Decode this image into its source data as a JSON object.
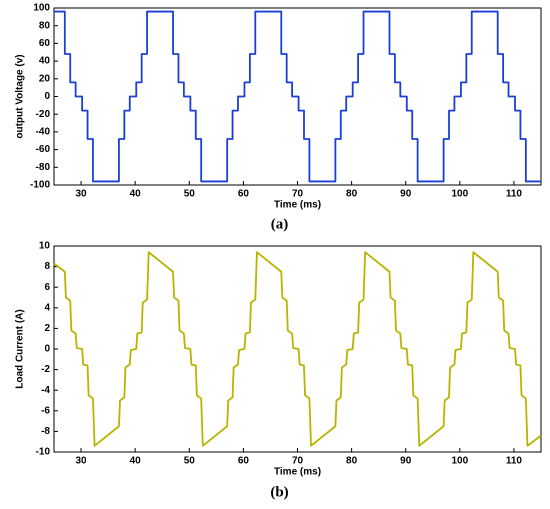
{
  "chart_data": [
    {
      "type": "line",
      "caption": "(a)",
      "xlabel": "Time (ms)",
      "ylabel": "output Voltage (v)",
      "xlim": [
        25,
        115
      ],
      "xticks": [
        30,
        40,
        50,
        60,
        70,
        80,
        90,
        100,
        110
      ],
      "ylim": [
        -100,
        100
      ],
      "yticks": [
        -100,
        -80,
        -60,
        -40,
        -20,
        0,
        20,
        40,
        60,
        80,
        100
      ],
      "series": [
        {
          "color": "#1a3fd8",
          "x": [
            25,
            27,
            27,
            28,
            28,
            29,
            29,
            30.2,
            30.2,
            31.2,
            31.2,
            32.2,
            32.2,
            37,
            37,
            38,
            38,
            39,
            39,
            40.2,
            40.2,
            41.2,
            41.2,
            42.2,
            42.2,
            47,
            47,
            48,
            48,
            49,
            49,
            50.2,
            50.2,
            51.2,
            51.2,
            52.2,
            52.2,
            57,
            57,
            58,
            58,
            59,
            59,
            60.2,
            60.2,
            61.2,
            61.2,
            62.2,
            62.2,
            67,
            67,
            68,
            68,
            69,
            69,
            70.2,
            70.2,
            71.2,
            71.2,
            72.2,
            72.2,
            77,
            77,
            78,
            78,
            79,
            79,
            80.2,
            80.2,
            81.2,
            81.2,
            82.2,
            82.2,
            87,
            87,
            88,
            88,
            89,
            89,
            90.2,
            90.2,
            91.2,
            91.2,
            92.2,
            92.2,
            97,
            97,
            98,
            98,
            99,
            99,
            100.2,
            100.2,
            101.2,
            101.2,
            102.2,
            102.2,
            107,
            107,
            108,
            108,
            109,
            109,
            110.2,
            110.2,
            111.2,
            111.2,
            112.2,
            112.2,
            115
          ],
          "values": [
            96,
            96,
            48,
            48,
            16,
            16,
            0,
            0,
            -16,
            -16,
            -48,
            -48,
            -96,
            -96,
            -48,
            -48,
            -16,
            -16,
            0,
            0,
            16,
            16,
            48,
            48,
            96,
            96,
            48,
            48,
            16,
            16,
            0,
            0,
            -16,
            -16,
            -48,
            -48,
            -96,
            -96,
            -48,
            -48,
            -16,
            -16,
            0,
            0,
            16,
            16,
            48,
            48,
            96,
            96,
            48,
            48,
            16,
            16,
            0,
            0,
            -16,
            -16,
            -48,
            -48,
            -96,
            -96,
            -48,
            -48,
            -16,
            -16,
            0,
            0,
            16,
            16,
            48,
            48,
            96,
            96,
            48,
            48,
            16,
            16,
            0,
            0,
            -16,
            -16,
            -48,
            -48,
            -96,
            -96,
            -48,
            -48,
            -16,
            -16,
            0,
            0,
            16,
            16,
            48,
            48,
            96,
            96,
            48,
            48,
            16,
            16,
            0,
            0,
            -16,
            -16,
            -48,
            -48,
            -96,
            -96
          ]
        }
      ]
    },
    {
      "type": "line",
      "caption": "(b)",
      "xlabel": "Time (ms)",
      "ylabel": "Load Current (A)",
      "xlim": [
        25,
        115
      ],
      "xticks": [
        30,
        40,
        50,
        60,
        70,
        80,
        90,
        100,
        110
      ],
      "ylim": [
        -10,
        10
      ],
      "yticks": [
        -10,
        -8,
        -6,
        -4,
        -2,
        0,
        2,
        4,
        6,
        8,
        10
      ],
      "series": [
        {
          "color": "#b8b400",
          "x": [
            25,
            27,
            27.2,
            28,
            28.2,
            29,
            29.2,
            30.2,
            30.4,
            31.2,
            31.4,
            32.2,
            32.5,
            37,
            37.2,
            38,
            38.2,
            39,
            39.2,
            40.2,
            40.4,
            41.2,
            41.4,
            42.2,
            42.5,
            47,
            47.2,
            48,
            48.2,
            49,
            49.2,
            50.2,
            50.4,
            51.2,
            51.4,
            52.2,
            52.5,
            57,
            57.2,
            58,
            58.2,
            59,
            59.2,
            60.2,
            60.4,
            61.2,
            61.4,
            62.2,
            62.5,
            67,
            67.2,
            68,
            68.2,
            69,
            69.2,
            70.2,
            70.4,
            71.2,
            71.4,
            72.2,
            72.5,
            77,
            77.2,
            78,
            78.2,
            79,
            79.2,
            80.2,
            80.4,
            81.2,
            81.4,
            82.2,
            82.5,
            87,
            87.2,
            88,
            88.2,
            89,
            89.2,
            90.2,
            90.4,
            91.2,
            91.4,
            92.2,
            92.5,
            97,
            97.2,
            98,
            98.2,
            99,
            99.2,
            100.2,
            100.4,
            101.2,
            101.4,
            102.2,
            102.5,
            107,
            107.2,
            108,
            108.2,
            109,
            109.2,
            110.2,
            110.4,
            111.2,
            111.4,
            112.2,
            112.5,
            115
          ],
          "values": [
            8.3,
            7.5,
            5.0,
            4.7,
            1.8,
            1.5,
            0.1,
            0,
            -1.5,
            -1.6,
            -4.5,
            -4.8,
            -9.4,
            -7.5,
            -5.0,
            -4.7,
            -1.8,
            -1.5,
            -0.1,
            0,
            1.5,
            1.6,
            4.5,
            4.8,
            9.4,
            7.5,
            5.0,
            4.7,
            1.8,
            1.5,
            0.1,
            0,
            -1.5,
            -1.6,
            -4.5,
            -4.8,
            -9.4,
            -7.5,
            -5.0,
            -4.7,
            -1.8,
            -1.5,
            -0.1,
            0,
            1.5,
            1.6,
            4.5,
            4.8,
            9.4,
            7.5,
            5.0,
            4.7,
            1.8,
            1.5,
            0.1,
            0,
            -1.5,
            -1.6,
            -4.5,
            -4.8,
            -9.4,
            -7.5,
            -5.0,
            -4.7,
            -1.8,
            -1.5,
            -0.1,
            0,
            1.5,
            1.6,
            4.5,
            4.8,
            9.4,
            7.5,
            5.0,
            4.7,
            1.8,
            1.5,
            0.1,
            0,
            -1.5,
            -1.6,
            -4.5,
            -4.8,
            -9.4,
            -7.5,
            -5.0,
            -4.7,
            -1.8,
            -1.5,
            -0.1,
            0,
            1.5,
            1.6,
            4.5,
            4.8,
            9.4,
            7.5,
            5.0,
            4.7,
            1.8,
            1.5,
            0.1,
            0,
            -1.5,
            -1.6,
            -4.5,
            -4.8,
            -9.4,
            -8.4
          ]
        }
      ]
    }
  ]
}
